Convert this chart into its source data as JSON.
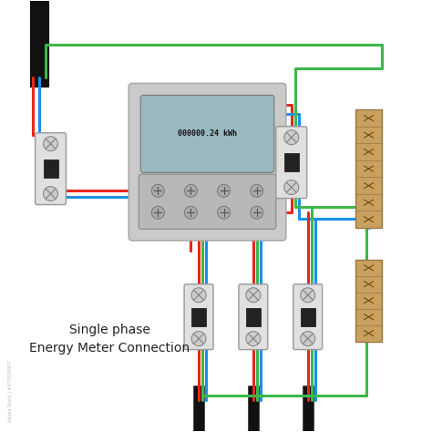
{
  "title_line1": "Single phase",
  "title_line2": "Energy Meter Connection",
  "title_fontsize": 10,
  "bg_color": "#ffffff",
  "wire_red": "#e8271a",
  "wire_blue": "#1a90e8",
  "wire_green": "#3db84a",
  "wire_black": "#111111",
  "wire_lw": 2.2,
  "meter_gray": "#c8c8c8",
  "breaker_gray": "#d8d8d8",
  "display_color": "#9ab8c0",
  "terminal_tan": "#c8a060",
  "display_text": "000000.24 kWh"
}
